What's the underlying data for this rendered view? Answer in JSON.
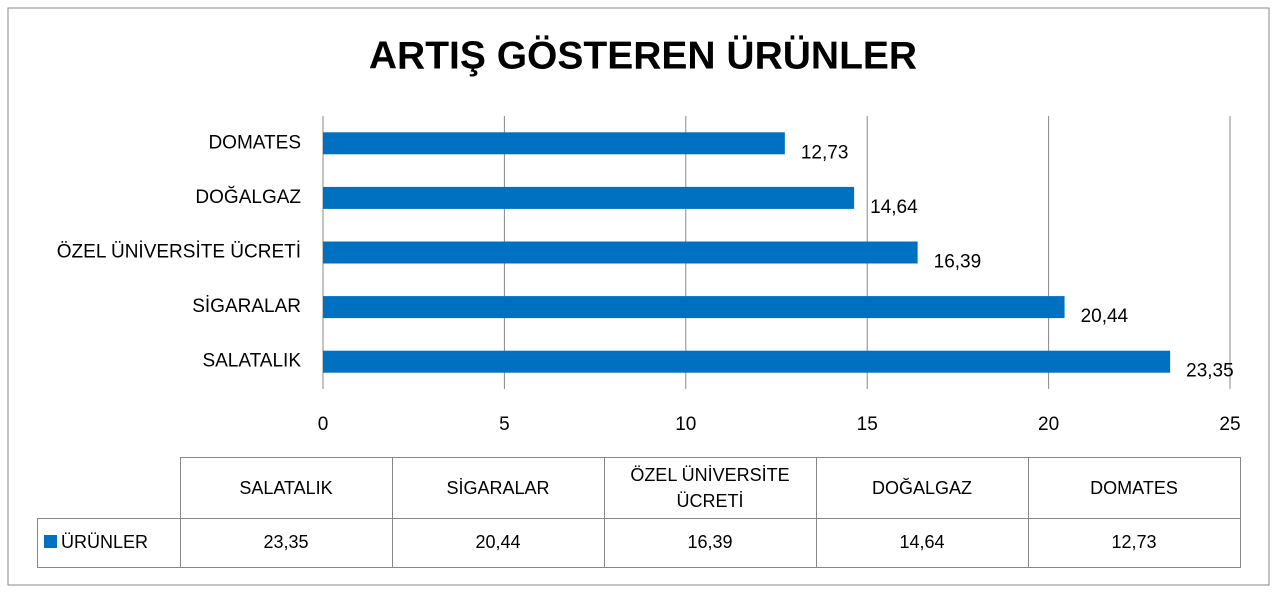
{
  "chart_data": {
    "type": "bar",
    "orientation": "horizontal",
    "title": "ARTIŞ GÖSTEREN ÜRÜNLER",
    "categories": [
      "SALATALIK",
      "SİGARALAR",
      "ÖZEL ÜNİVERSİTE ÜCRETİ",
      "DOĞALGAZ",
      "DOMATES"
    ],
    "series": [
      {
        "name": "ÜRÜNLER",
        "color": "#0070c0",
        "values": [
          23.35,
          20.44,
          16.39,
          14.64,
          12.73
        ],
        "value_labels": [
          "23,35",
          "20,44",
          "16,39",
          "14,64",
          "12,73"
        ]
      }
    ],
    "xlim": [
      0,
      25
    ],
    "xticks": [
      0,
      5,
      10,
      15,
      20,
      25
    ],
    "grid": true,
    "data_table": true
  }
}
